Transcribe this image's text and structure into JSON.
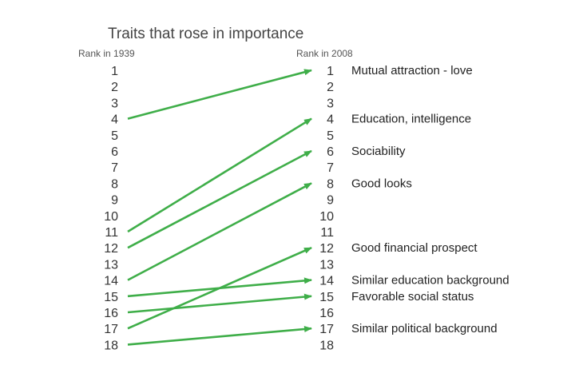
{
  "chart_data": {
    "type": "slope",
    "title": "Traits that rose in importance",
    "left_label": "Rank in 1939",
    "right_label": "Rank in 2008",
    "rank_range": [
      1,
      18
    ],
    "line_color": "#3fae49",
    "series": [
      {
        "name": "Mutual attraction - love",
        "rank_1939": 4,
        "rank_2008": 1
      },
      {
        "name": "Education, intelligence",
        "rank_1939": 11,
        "rank_2008": 4
      },
      {
        "name": "Sociability",
        "rank_1939": 12,
        "rank_2008": 6
      },
      {
        "name": "Good looks",
        "rank_1939": 14,
        "rank_2008": 8
      },
      {
        "name": "Good financial prospect",
        "rank_1939": 17,
        "rank_2008": 12
      },
      {
        "name": "Similar education background",
        "rank_1939": 15,
        "rank_2008": 14
      },
      {
        "name": "Favorable social status",
        "rank_1939": 16,
        "rank_2008": 15
      },
      {
        "name": "Similar political background",
        "rank_1939": 18,
        "rank_2008": 17
      }
    ]
  }
}
